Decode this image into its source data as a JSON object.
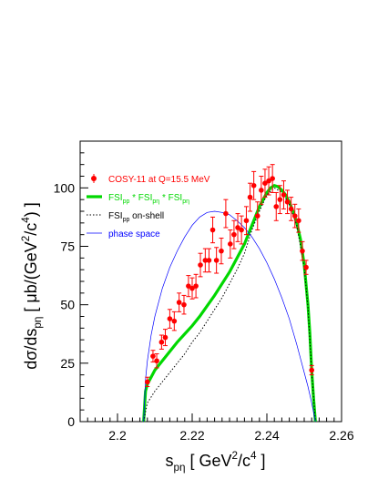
{
  "chart_data": {
    "type": "scatter",
    "xlabel_parts": [
      "s",
      "pη",
      " [ GeV",
      "2",
      "/c",
      "4",
      " ]"
    ],
    "ylabel_parts": [
      "dσ/ds",
      "pη",
      " [ μb/(GeV",
      "2",
      "/c",
      "4",
      ") ]"
    ],
    "xlim": [
      2.19,
      2.26
    ],
    "ylim": [
      0,
      120
    ],
    "x_ticks": [
      2.2,
      2.22,
      2.24,
      2.26
    ],
    "x_tick_labels": [
      "2.2",
      "2.22",
      "2.24",
      "2.26"
    ],
    "y_ticks": [
      0,
      25,
      50,
      75,
      100
    ],
    "y_tick_labels": [
      "0",
      "25",
      "50",
      "75",
      "100"
    ],
    "grid": false,
    "legend_position": "top-left",
    "series": [
      {
        "name": "COSY-11  at Q=15.5 MeV",
        "kind": "data_points",
        "color": "#ff0000",
        "x": [
          2.208,
          2.2095,
          2.2105,
          2.2118,
          2.2128,
          2.214,
          2.2152,
          2.2165,
          2.2178,
          2.219,
          2.22,
          2.221,
          2.2222,
          2.2235,
          2.2245,
          2.2255,
          2.2265,
          2.2278,
          2.229,
          2.2302,
          2.2312,
          2.2322,
          2.2332,
          2.2345,
          2.2355,
          2.2365,
          2.2375,
          2.2385,
          2.2395,
          2.2405,
          2.2415,
          2.2425,
          2.2435,
          2.2445,
          2.2455,
          2.2465,
          2.2475,
          2.2485,
          2.2495,
          2.2505,
          2.252
        ],
        "y": [
          17,
          28,
          26,
          34,
          36,
          44,
          43,
          51,
          50,
          58,
          57,
          58,
          67,
          69,
          69,
          82,
          69,
          73,
          89,
          76,
          80,
          83,
          82,
          86,
          96,
          101,
          88,
          99,
          102,
          103,
          104,
          92,
          95,
          97,
          94,
          91,
          88,
          86,
          73,
          66,
          22
        ],
        "err": [
          2,
          2.5,
          3,
          3,
          3.5,
          4,
          4,
          4,
          4,
          4.5,
          4.5,
          5,
          5,
          5,
          5,
          5.5,
          5.5,
          5.5,
          6,
          6,
          6,
          6,
          6,
          6,
          6,
          6,
          6,
          6,
          6,
          6,
          6,
          6,
          6,
          6,
          5,
          5,
          5,
          5,
          4,
          3,
          2
        ]
      },
      {
        "name_parts": [
          "FSI",
          "pp",
          " * FSI",
          "pη",
          " * FSI",
          "pη"
        ],
        "kind": "curve",
        "color": "#00d800",
        "style": "thick solid",
        "x": [
          2.207,
          2.2075,
          2.208,
          2.209,
          2.21,
          2.212,
          2.214,
          2.216,
          2.218,
          2.22,
          2.222,
          2.224,
          2.226,
          2.228,
          2.23,
          2.232,
          2.234,
          2.236,
          2.238,
          2.24,
          2.241,
          2.242,
          2.243,
          2.244,
          2.245,
          2.246,
          2.247,
          2.248,
          2.249,
          2.25,
          2.251,
          2.2515,
          2.252,
          2.2525,
          2.253
        ],
        "y": [
          0,
          13,
          16,
          19,
          22,
          26,
          30,
          34,
          37.5,
          41,
          45,
          49.5,
          54,
          59,
          64,
          70,
          76,
          84,
          92,
          98,
          100,
          101,
          100.5,
          99,
          97,
          94,
          90,
          85,
          78,
          67,
          50,
          38,
          22,
          10,
          0
        ]
      },
      {
        "name_parts": [
          "FSI",
          "pp",
          " on-shell"
        ],
        "kind": "curve",
        "color": "#000000",
        "style": "dotted",
        "x": [
          2.207,
          2.208,
          2.21,
          2.212,
          2.214,
          2.216,
          2.218,
          2.22,
          2.222,
          2.224,
          2.226,
          2.228,
          2.23,
          2.232,
          2.234,
          2.236,
          2.238,
          2.24,
          2.242,
          2.244,
          2.246,
          2.248,
          2.25,
          2.251,
          2.252,
          2.253
        ],
        "y": [
          0,
          8,
          13,
          17,
          21,
          25,
          29,
          34,
          38,
          43,
          48,
          53,
          59,
          65,
          72,
          82,
          90,
          97,
          100,
          98,
          93,
          84,
          66,
          49,
          21,
          0
        ]
      },
      {
        "name": "phase space",
        "kind": "curve",
        "color": "#0000ff",
        "style": "thin solid",
        "x": [
          2.207,
          2.2075,
          2.208,
          2.209,
          2.21,
          2.212,
          2.214,
          2.216,
          2.218,
          2.22,
          2.222,
          2.224,
          2.226,
          2.228,
          2.23,
          2.232,
          2.234,
          2.236,
          2.238,
          2.24,
          2.242,
          2.244,
          2.246,
          2.248,
          2.249,
          2.25,
          2.251,
          2.252,
          2.2525,
          2.253
        ],
        "y": [
          0,
          18,
          26,
          37,
          45,
          57,
          66,
          73,
          79,
          84,
          87.5,
          89.5,
          90,
          89.5,
          88.5,
          86,
          83,
          79,
          74,
          68,
          61,
          53,
          44,
          33,
          27,
          21,
          15,
          8,
          4,
          0
        ]
      }
    ]
  }
}
